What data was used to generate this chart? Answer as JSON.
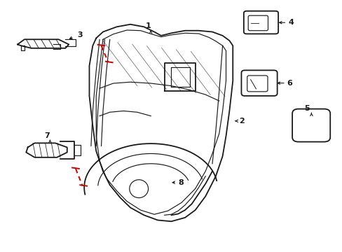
{
  "bg_color": "#ffffff",
  "line_color": "#1a1a1a",
  "red_dash_color": "#cc0000",
  "label_color": "#000000",
  "lw_main": 1.3,
  "lw_inner": 0.85,
  "lw_arrow": 0.8
}
